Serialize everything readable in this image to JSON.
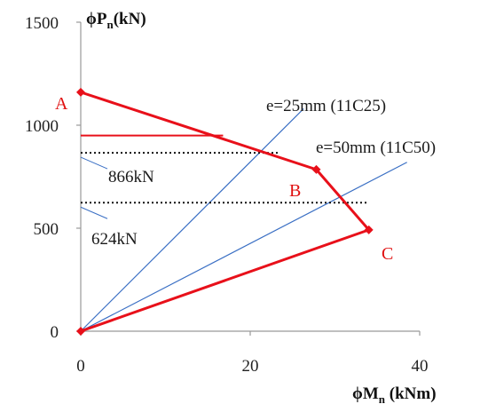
{
  "chart_data": {
    "type": "line",
    "xlabel": "ϕM",
    "xlabel_sub": "n",
    "xlabel_unit": " (kNm)",
    "ylabel": "ϕP",
    "ylabel_sub": "n",
    "ylabel_unit": "(kN)",
    "xlim": [
      0,
      40
    ],
    "ylim": [
      0,
      1500
    ],
    "xticks": [
      "0",
      "20",
      "40"
    ],
    "yticks": [
      "0",
      "500",
      "1000",
      "1500"
    ],
    "grid": false,
    "interaction_curve": {
      "color": "#e8101a",
      "points": [
        {
          "x": 0,
          "y": 1160
        },
        {
          "x": 27.8,
          "y": 785
        },
        {
          "x": 34,
          "y": 492
        },
        {
          "x": 0,
          "y": 0
        }
      ],
      "point_labels": [
        "A",
        "B",
        "C"
      ]
    },
    "cap_line": {
      "color": "#e8101a",
      "x": [
        0,
        16.8
      ],
      "y": 950
    },
    "eccentricity_lines": [
      {
        "label": "e=25mm (11C25)",
        "color": "#3a6fc4",
        "x_end": 26.3,
        "y_end": 1080
      },
      {
        "label": "e=50mm (11C50)",
        "color": "#3a6fc4",
        "x_end": 38.5,
        "y_end": 820
      }
    ],
    "dotted_lines": [
      {
        "y": 866,
        "x": [
          0,
          23.5
        ],
        "label": "866kN",
        "color": "#111111"
      },
      {
        "y": 624,
        "x": [
          0,
          34
        ],
        "label": "624kN",
        "color": "#111111"
      }
    ]
  }
}
